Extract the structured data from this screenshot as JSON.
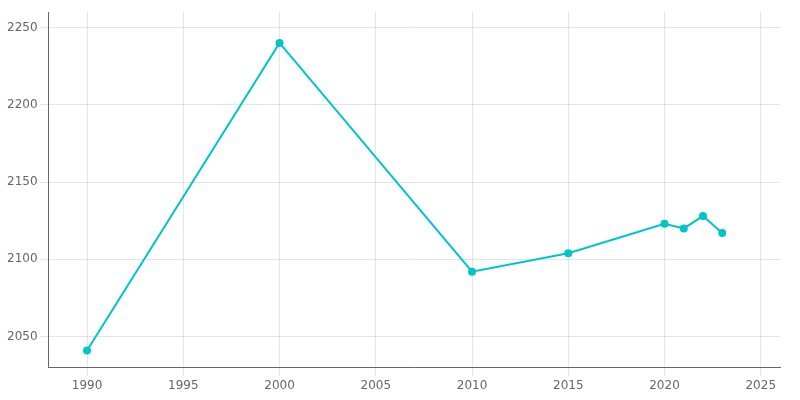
{
  "chart_data": {
    "type": "line",
    "x": [
      1990,
      2000,
      2010,
      2015,
      2020,
      2021,
      2022,
      2023
    ],
    "values": [
      2041,
      2240,
      2092,
      2104,
      2123,
      2120,
      2128,
      2117
    ],
    "color": "#00c5c8",
    "marker": "o",
    "xlim": [
      1988,
      2026
    ],
    "ylim": [
      2030,
      2260
    ],
    "xticks": [
      1990,
      1995,
      2000,
      2005,
      2010,
      2015,
      2020,
      2025
    ],
    "yticks": [
      2050,
      2100,
      2150,
      2200,
      2250
    ],
    "grid": true
  }
}
